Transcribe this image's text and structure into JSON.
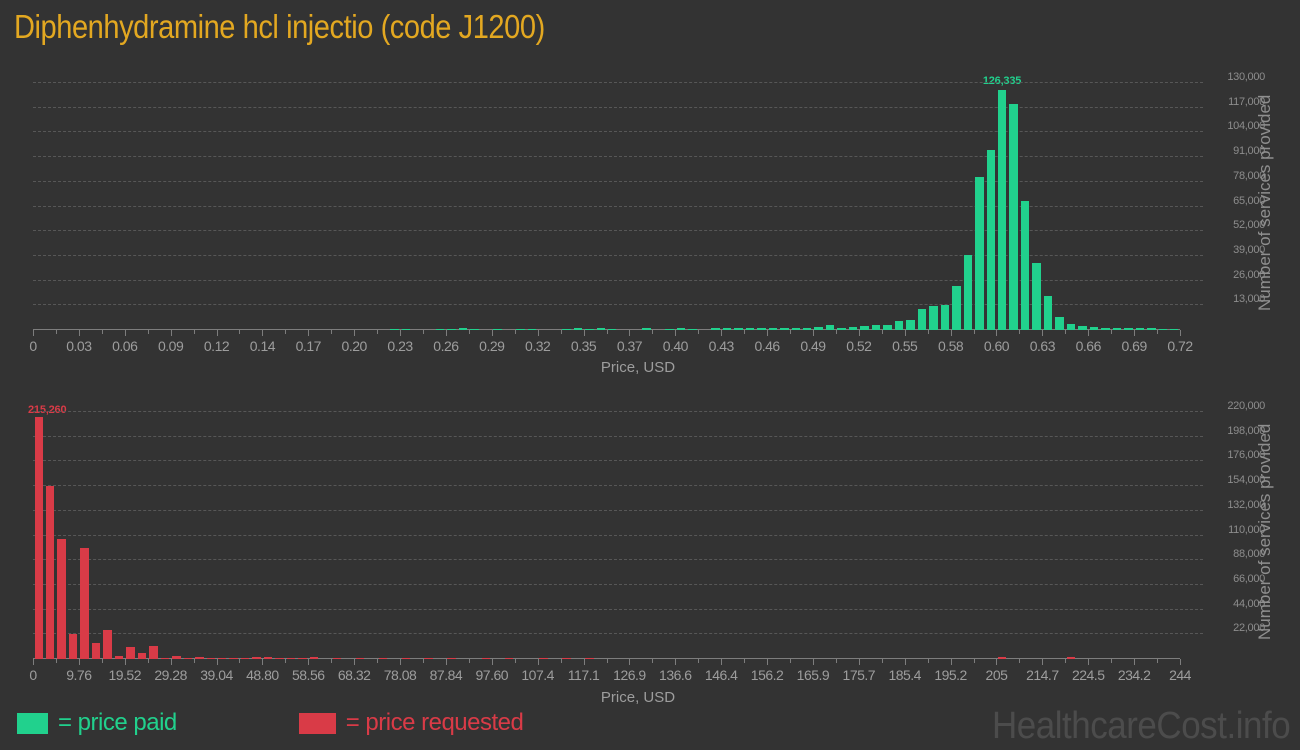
{
  "title": "Diphenhydramine hcl injectio (code J1200)",
  "watermark": "HealthcareCost.info",
  "legend": {
    "paid_label": "= price paid",
    "requested_label": "= price requested"
  },
  "colors": {
    "background": "#333333",
    "paid": "#21d18d",
    "requested": "#d93b47",
    "title": "#e3a821",
    "grid": "#575757",
    "axis": "#7d7d7d",
    "x_tick_label": "#9d9d9d",
    "y_tick_label": "#8d8d8d",
    "watermark": "#4c4c4c"
  },
  "chart_data": [
    {
      "type": "bar",
      "name": "price-paid-histogram",
      "series_label": "price paid",
      "color": "#21d18d",
      "xlabel": "Price, USD",
      "ylabel": "Number of services provided",
      "xlim": [
        0,
        0.72
      ],
      "ylim": [
        0,
        135000
      ],
      "grid": "dashed-horizontal",
      "legend_position": "bottom-left",
      "x_ticks": [
        "0",
        "0.03",
        "0.06",
        "0.09",
        "0.12",
        "0.14",
        "0.17",
        "0.20",
        "0.23",
        "0.26",
        "0.29",
        "0.32",
        "0.35",
        "0.37",
        "0.40",
        "0.43",
        "0.46",
        "0.49",
        "0.52",
        "0.55",
        "0.58",
        "0.60",
        "0.63",
        "0.66",
        "0.69",
        "0.72"
      ],
      "y_ticks": [
        "13,000",
        "26,000",
        "39,000",
        "52,000",
        "65,000",
        "78,000",
        "91,000",
        "104,000",
        "117,000",
        "130,000"
      ],
      "bin_width_usd": 0.0072,
      "num_bins": 100,
      "peak_label": "126,335",
      "peak_value": 126335,
      "peak_bin_x_usd": 0.605,
      "bins_note": "pairs of [bin_index, count]; bin x-range = index*0.0072 .. (index+1)*0.0072 USD",
      "bins": [
        [
          31,
          700
        ],
        [
          32,
          600
        ],
        [
          35,
          700
        ],
        [
          36,
          700
        ],
        [
          37,
          800
        ],
        [
          38,
          700
        ],
        [
          40,
          700
        ],
        [
          42,
          700
        ],
        [
          43,
          600
        ],
        [
          46,
          700
        ],
        [
          47,
          800
        ],
        [
          48,
          700
        ],
        [
          49,
          800
        ],
        [
          50,
          700
        ],
        [
          53,
          800
        ],
        [
          55,
          700
        ],
        [
          56,
          800
        ],
        [
          57,
          700
        ],
        [
          59,
          800
        ],
        [
          60,
          900
        ],
        [
          61,
          800
        ],
        [
          62,
          900
        ],
        [
          63,
          900
        ],
        [
          64,
          1000
        ],
        [
          65,
          900
        ],
        [
          66,
          1100
        ],
        [
          67,
          1300
        ],
        [
          68,
          1700
        ],
        [
          69,
          2400
        ],
        [
          70,
          1000
        ],
        [
          71,
          1700
        ],
        [
          72,
          2100
        ],
        [
          73,
          2600
        ],
        [
          74,
          2600
        ],
        [
          75,
          4800
        ],
        [
          76,
          5500
        ],
        [
          77,
          10800
        ],
        [
          78,
          12700
        ],
        [
          79,
          13300
        ],
        [
          80,
          23100
        ],
        [
          81,
          39400
        ],
        [
          82,
          80500
        ],
        [
          83,
          94800
        ],
        [
          84,
          126335
        ],
        [
          85,
          119000
        ],
        [
          86,
          68000
        ],
        [
          87,
          35100
        ],
        [
          88,
          18000
        ],
        [
          89,
          7000
        ],
        [
          90,
          3400
        ],
        [
          91,
          2000
        ],
        [
          92,
          1500
        ],
        [
          93,
          1200
        ],
        [
          94,
          1000
        ],
        [
          95,
          900
        ],
        [
          96,
          800
        ],
        [
          97,
          800
        ],
        [
          98,
          700
        ],
        [
          99,
          700
        ]
      ]
    },
    {
      "type": "bar",
      "name": "price-requested-histogram",
      "series_label": "price requested",
      "color": "#d93b47",
      "xlabel": "Price, USD",
      "ylabel": "Number of services provided",
      "xlim": [
        0,
        244
      ],
      "ylim": [
        0,
        228000
      ],
      "grid": "dashed-horizontal",
      "legend_position": "bottom-left",
      "x_ticks": [
        "0",
        "9.76",
        "19.52",
        "29.28",
        "39.04",
        "48.80",
        "58.56",
        "68.32",
        "78.08",
        "87.84",
        "97.60",
        "107.4",
        "117.1",
        "126.9",
        "136.6",
        "146.4",
        "156.2",
        "165.9",
        "175.7",
        "185.4",
        "195.2",
        "205",
        "214.7",
        "224.5",
        "234.2",
        "244"
      ],
      "y_ticks": [
        "22,000",
        "44,000",
        "66,000",
        "88,000",
        "110,000",
        "132,000",
        "154,000",
        "176,000",
        "198,000",
        "220,000"
      ],
      "bin_width_usd": 2.44,
      "num_bins": 100,
      "peak_label": "215,260",
      "peak_value": 215260,
      "peak_bin_x_usd": 0,
      "bins_note": "pairs of [bin_index, count]; bin x-range = index*2.44 .. (index+1)*2.44 USD",
      "bins": [
        [
          0,
          215260
        ],
        [
          1,
          153700
        ],
        [
          2,
          106600
        ],
        [
          3,
          22700
        ],
        [
          4,
          99200
        ],
        [
          5,
          14600
        ],
        [
          6,
          26200
        ],
        [
          7,
          3000
        ],
        [
          8,
          11000
        ],
        [
          9,
          5700
        ],
        [
          10,
          11700
        ],
        [
          11,
          1200
        ],
        [
          12,
          2600
        ],
        [
          13,
          900
        ],
        [
          14,
          1500
        ],
        [
          15,
          900
        ],
        [
          16,
          1200
        ],
        [
          17,
          900
        ],
        [
          18,
          900
        ],
        [
          19,
          1500
        ],
        [
          20,
          1800
        ],
        [
          21,
          700
        ],
        [
          22,
          1200
        ],
        [
          23,
          1200
        ],
        [
          24,
          1500
        ],
        [
          26,
          800
        ],
        [
          28,
          700
        ],
        [
          30,
          1200
        ],
        [
          32,
          1200
        ],
        [
          34,
          1000
        ],
        [
          36,
          800
        ],
        [
          39,
          1000
        ],
        [
          41,
          600
        ],
        [
          44,
          600
        ],
        [
          46,
          500
        ],
        [
          48,
          400
        ],
        [
          84,
          2000
        ],
        [
          90,
          1800
        ]
      ]
    }
  ]
}
